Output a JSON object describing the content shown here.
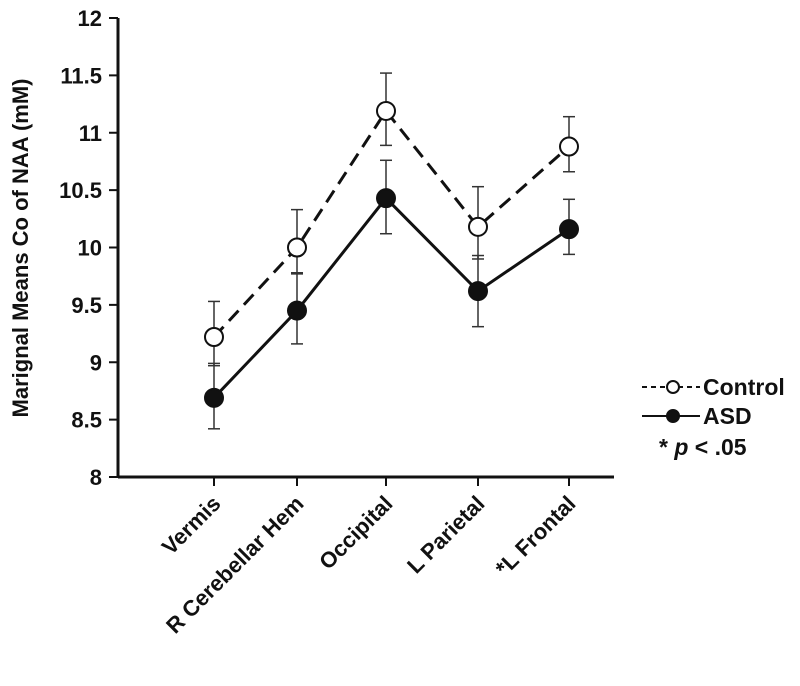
{
  "chart_data": {
    "type": "line",
    "ylabel": "Marignal Means Co of NAA (mM)",
    "ylim": [
      8,
      12
    ],
    "yticks": [
      "8",
      "8.5",
      "9",
      "9.5",
      "10",
      "10.5",
      "11",
      "11.5",
      "12"
    ],
    "categories": [
      "Vermis",
      "R Cerebellar Hem",
      "Occipital",
      "L Parietal",
      "*L Frontal"
    ],
    "series": [
      {
        "name": "Control",
        "style": "dashed",
        "marker": "open-circle",
        "color": "#111111",
        "values": [
          9.22,
          10.0,
          11.19,
          10.18,
          10.88
        ],
        "err_low": [
          0.25,
          0.23,
          0.3,
          0.28,
          0.22
        ],
        "err_high": [
          0.31,
          0.33,
          0.33,
          0.35,
          0.26
        ]
      },
      {
        "name": "ASD",
        "style": "solid",
        "marker": "filled-circle",
        "color": "#111111",
        "values": [
          8.69,
          9.45,
          10.43,
          9.62,
          10.16
        ],
        "err_low": [
          0.27,
          0.29,
          0.31,
          0.31,
          0.22
        ],
        "err_high": [
          0.3,
          0.33,
          0.33,
          0.31,
          0.26
        ]
      }
    ],
    "legend": {
      "placement": "right",
      "entries": [
        "Control",
        "ASD"
      ]
    },
    "annotation": {
      "prefix": "* ",
      "italic": "p",
      "suffix": " < .05"
    },
    "grid": false
  }
}
